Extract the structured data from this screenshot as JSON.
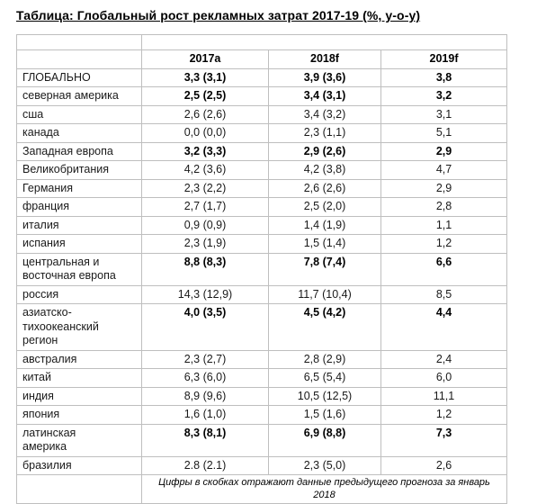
{
  "title": "Таблица: Глобальный рост рекламных затрат 2017-19 (%, y-o-y)",
  "colors": {
    "border": "#bfbfbf",
    "text": "#1a1a1a",
    "background": "#ffffff"
  },
  "table": {
    "columns": [
      "",
      "2017a",
      "2018f",
      "2019f"
    ],
    "rows": [
      {
        "label": "ГЛОБАЛЬНО",
        "values": [
          "3,3 (3,1)",
          "3,9 (3,6)",
          "3,8"
        ],
        "bold": true
      },
      {
        "label": "северная америка",
        "values": [
          "2,5 (2,5)",
          "3,4 (3,1)",
          "3,2"
        ],
        "bold": true
      },
      {
        "label": "сша",
        "values": [
          "2,6 (2,6)",
          "3,4 (3,2)",
          "3,1"
        ],
        "bold": false
      },
      {
        "label": "канада",
        "values": [
          "0,0 (0,0)",
          "2,3 (1,1)",
          "5,1"
        ],
        "bold": false
      },
      {
        "label": "Западная европа",
        "values": [
          "3,2 (3,3)",
          "2,9 (2,6)",
          "2,9"
        ],
        "bold": true
      },
      {
        "label": "Великобритания",
        "values": [
          "4,2 (3,6)",
          "4,2 (3,8)",
          "4,7"
        ],
        "bold": false
      },
      {
        "label": "Германия",
        "values": [
          "2,3 (2,2)",
          "2,6 (2,6)",
          "2,9"
        ],
        "bold": false
      },
      {
        "label": "франция",
        "values": [
          "2,7 (1,7)",
          "2,5 (2,0)",
          "2,8"
        ],
        "bold": false
      },
      {
        "label": "италия",
        "values": [
          "0,9 (0,9)",
          "1,4 (1,9)",
          "1,1"
        ],
        "bold": false
      },
      {
        "label": "испания",
        "values": [
          "2,3 (1,9)",
          "1,5 (1,4)",
          "1,2"
        ],
        "bold": false
      },
      {
        "label": "центральная и\nвосточная европа",
        "values": [
          "8,8 (8,3)",
          "7,8 (7,4)",
          "6,6"
        ],
        "bold": true
      },
      {
        "label": "россия",
        "values": [
          "14,3 (12,9)",
          "11,7 (10,4)",
          "8,5"
        ],
        "bold": false
      },
      {
        "label": "азиатско-\nтихоокеанский\nрегион",
        "values": [
          "4,0 (3,5)",
          "4,5 (4,2)",
          "4,4"
        ],
        "bold": true
      },
      {
        "label": "австралия",
        "values": [
          "2,3 (2,7)",
          "2,8 (2,9)",
          "2,4"
        ],
        "bold": false
      },
      {
        "label": "китай",
        "values": [
          "6,3 (6,0)",
          "6,5 (5,4)",
          "6,0"
        ],
        "bold": false
      },
      {
        "label": "индия",
        "values": [
          "8,9 (9,6)",
          "10,5 (12,5)",
          "11,1"
        ],
        "bold": false
      },
      {
        "label": "япония",
        "values": [
          "1,6 (1,0)",
          "1,5 (1,6)",
          "1,2"
        ],
        "bold": false
      },
      {
        "label": "латинская\nамерика",
        "values": [
          "8,3 (8,1)",
          "6,9 (8,8)",
          "7,3"
        ],
        "bold": true
      },
      {
        "label": "бразилия",
        "values": [
          "2.8 (2.1)",
          "2,3 (5,0)",
          "2,6"
        ],
        "bold": false
      }
    ],
    "footnote": "Цифры в скобках отражают данные предыдущего прогноза за январь 2018"
  }
}
